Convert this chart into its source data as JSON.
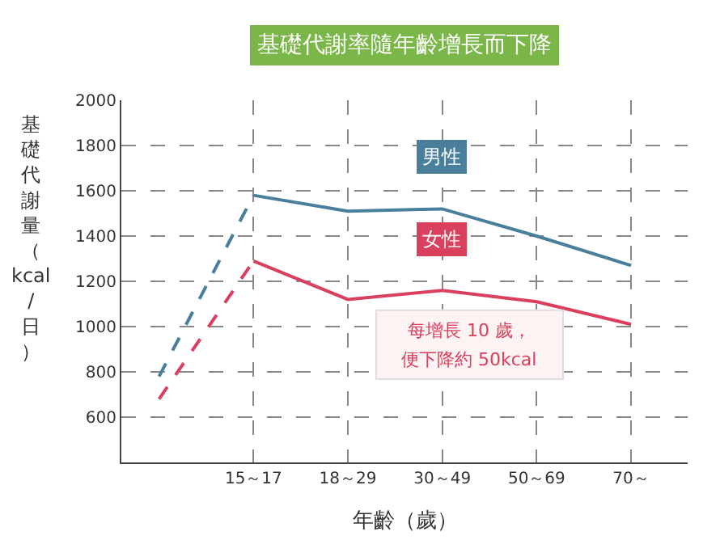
{
  "chart_data": {
    "type": "line",
    "title": "基礎代謝率隨年齡增長而下降",
    "xlabel": "年齡（歲）",
    "ylabel": "基礎代謝量（kcal/日）",
    "categories": [
      null,
      "15～17",
      "18～29",
      "30～49",
      "50～69",
      "70～"
    ],
    "ylim": [
      400,
      2000
    ],
    "yticks": [
      600,
      800,
      1000,
      1200,
      1400,
      1600,
      1800,
      2000
    ],
    "grid": true,
    "legend": false,
    "marker": "none",
    "series": [
      {
        "name": "男性",
        "color": "#4a7f9c",
        "values": [
          null,
          1580,
          1510,
          1520,
          1400,
          1270
        ],
        "line_style": "solid"
      },
      {
        "color": "#4a7f9c",
        "values": [
          780,
          1580,
          null,
          null,
          null,
          null
        ],
        "line_style": "dashed"
      },
      {
        "name": "女性",
        "color": "#d9405e",
        "values": [
          null,
          1290,
          1120,
          1160,
          1110,
          1010
        ],
        "line_style": "solid"
      },
      {
        "color": "#d9405e",
        "values": [
          680,
          1290,
          null,
          null,
          null,
          null
        ],
        "line_style": "dashed"
      }
    ],
    "annotations": [
      "每增長 10 歲，",
      "便下降約 50kcal"
    ]
  }
}
